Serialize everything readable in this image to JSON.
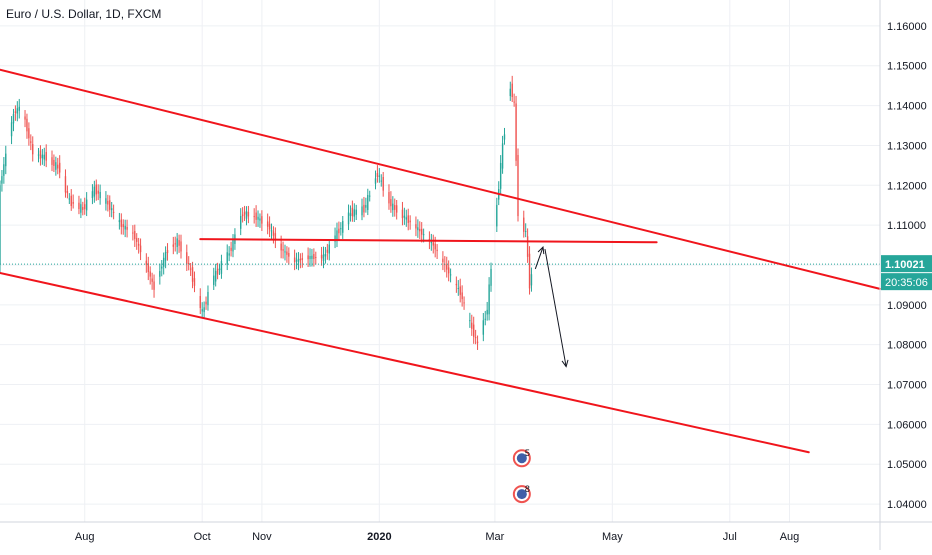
{
  "symbol": {
    "title": "Euro / U.S. Dollar, 1D, FXCM"
  },
  "colors": {
    "up": "#26a69a",
    "down": "#ef5350",
    "drawing": "#f0151c",
    "arrow": "#131722",
    "grid": "#eef0f4",
    "axis_text": "#131722",
    "current_price_bg": "#26a69a",
    "countdown_bg": "#26a69a"
  },
  "chart_data": {
    "type": "candlestick",
    "instrument": "EUR/USD",
    "timeframe": "1D",
    "y_axis": {
      "range": [
        1.0355,
        1.1665
      ],
      "ticks": [
        "1.16000",
        "1.15000",
        "1.14000",
        "1.13000",
        "1.12000",
        "1.11000",
        "1.10000",
        "1.09000",
        "1.08000",
        "1.07000",
        "1.06000",
        "1.05000",
        "1.04000"
      ]
    },
    "x_axis": {
      "range": [
        "2019-06-18",
        "2020-09-17"
      ],
      "tick_labels": [
        {
          "label": "Aug",
          "date": "2019-08-01"
        },
        {
          "label": "Oct",
          "date": "2019-10-01"
        },
        {
          "label": "Nov",
          "date": "2019-11-01"
        },
        {
          "label": "2020",
          "date": "2020-01-01",
          "bold": true
        },
        {
          "label": "Mar",
          "date": "2020-03-01"
        },
        {
          "label": "May",
          "date": "2020-05-01"
        },
        {
          "label": "Jul",
          "date": "2020-07-01"
        },
        {
          "label": "Aug",
          "date": "2020-08-01"
        }
      ]
    },
    "price_path": [
      [
        "2019-06-18",
        1.12
      ],
      [
        "2019-06-25",
        1.138
      ],
      [
        "2019-06-29",
        1.14
      ],
      [
        "2019-07-05",
        1.128
      ],
      [
        "2019-07-12",
        1.127
      ],
      [
        "2019-07-19",
        1.124
      ],
      [
        "2019-07-24",
        1.116
      ],
      [
        "2019-07-31",
        1.114
      ],
      [
        "2019-08-06",
        1.119
      ],
      [
        "2019-08-12",
        1.116
      ],
      [
        "2019-08-20",
        1.11
      ],
      [
        "2019-08-26",
        1.108
      ],
      [
        "2019-09-02",
        1.1
      ],
      [
        "2019-09-06",
        1.094
      ],
      [
        "2019-09-12",
        1.103
      ],
      [
        "2019-09-18",
        1.106
      ],
      [
        "2019-09-24",
        1.1
      ],
      [
        "2019-10-01",
        1.088
      ],
      [
        "2019-10-07",
        1.097
      ],
      [
        "2019-10-15",
        1.103
      ],
      [
        "2019-10-22",
        1.113
      ],
      [
        "2019-10-29",
        1.112
      ],
      [
        "2019-11-04",
        1.11
      ],
      [
        "2019-11-11",
        1.104
      ],
      [
        "2019-11-18",
        1.101
      ],
      [
        "2019-11-26",
        1.102
      ],
      [
        "2019-12-03",
        1.102
      ],
      [
        "2019-12-10",
        1.108
      ],
      [
        "2019-12-17",
        1.113
      ],
      [
        "2019-12-24",
        1.114
      ],
      [
        "2019-12-31",
        1.123
      ],
      [
        "2020-01-07",
        1.115
      ],
      [
        "2020-01-14",
        1.112
      ],
      [
        "2020-01-21",
        1.109
      ],
      [
        "2020-01-29",
        1.105
      ],
      [
        "2020-02-05",
        1.099
      ],
      [
        "2020-02-12",
        1.093
      ],
      [
        "2020-02-18",
        1.084
      ],
      [
        "2020-02-21",
        1.08
      ],
      [
        "2020-02-26",
        1.089
      ],
      [
        "2020-03-02",
        1.115
      ],
      [
        "2020-03-05",
        1.13
      ],
      [
        "2020-03-09",
        1.145
      ],
      [
        "2020-03-11",
        1.14
      ],
      [
        "2020-03-13",
        1.113
      ],
      [
        "2020-03-17",
        1.108
      ],
      [
        "2020-03-19",
        1.095
      ],
      [
        "2020-03-21",
        1.1002
      ]
    ],
    "current_price": {
      "label": "1.10021",
      "value": 1.10021
    },
    "countdown": {
      "label": "20:35:06"
    },
    "drawings": {
      "channel_upper": [
        [
          "2019-06-18",
          1.149
        ],
        [
          "2020-09-17",
          1.094
        ]
      ],
      "channel_lower": [
        [
          "2019-06-18",
          1.098
        ],
        [
          "2020-08-11",
          1.053
        ]
      ],
      "horizontal_level": [
        [
          "2019-09-30",
          1.1065
        ],
        [
          "2020-05-24",
          1.1057
        ]
      ],
      "arrow_up": [
        [
          "2020-03-22",
          1.099
        ],
        [
          "2020-03-26",
          1.1045
        ]
      ],
      "arrow_down": [
        [
          "2020-03-27",
          1.104
        ],
        [
          "2020-04-07",
          1.0745
        ]
      ]
    },
    "events": [
      {
        "date": "2020-03-15",
        "count": "5",
        "kind": "economic",
        "level": 1.0515
      },
      {
        "date": "2020-03-15",
        "count": "8",
        "kind": "economic",
        "level": 1.0425
      }
    ]
  }
}
